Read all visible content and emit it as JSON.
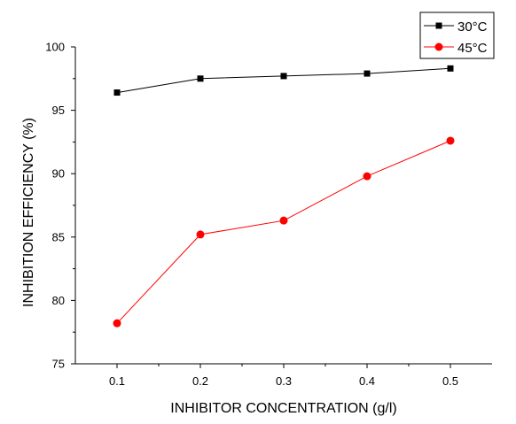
{
  "chart_data": {
    "type": "line",
    "title": "",
    "xlabel": "INHIBITOR CONCENTRATION (g/l)",
    "ylabel": "INHIBITION EFFICIENCY (%)",
    "xlim": [
      0.05,
      0.55
    ],
    "ylim": [
      75,
      100
    ],
    "x": [
      0.1,
      0.2,
      0.3,
      0.4,
      0.5
    ],
    "xticks": [
      "0.1",
      "0.2",
      "0.3",
      "0.4",
      "0.5"
    ],
    "yticks": [
      75,
      80,
      85,
      90,
      95,
      100
    ],
    "grid": false,
    "legend_position": "top-right",
    "series": [
      {
        "name": "30°C",
        "marker": "square",
        "color": "#000000",
        "values": [
          96.4,
          97.5,
          97.7,
          97.9,
          98.3
        ]
      },
      {
        "name": "45°C",
        "marker": "circle",
        "color": "#ff0000",
        "values": [
          78.2,
          85.2,
          86.3,
          89.8,
          92.6
        ]
      }
    ]
  }
}
